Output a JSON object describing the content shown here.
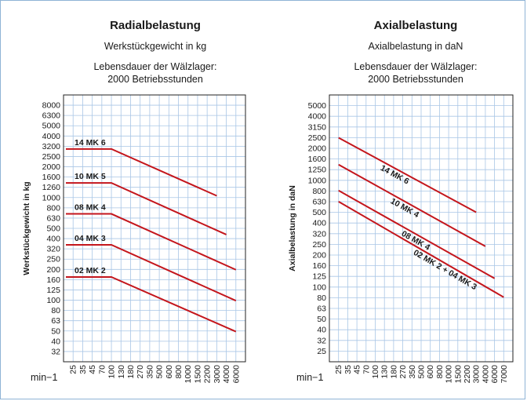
{
  "chart_data": [
    {
      "type": "line",
      "title": "Radialbelastung",
      "subtitle": "Werkstückgewicht in kg",
      "note_line1": "Lebensdauer der Wälzlager:",
      "note_line2": "2000 Betriebsstunden",
      "ylabel": "Werkstückgewicht in kg",
      "xunit": "min−1",
      "x_ticks": [
        "25",
        "35",
        "45",
        "70",
        "100",
        "130",
        "180",
        "270",
        "350",
        "500",
        "600",
        "800",
        "1000",
        "1500",
        "2200",
        "3000",
        "4000",
        "6000"
      ],
      "y_ticks": [
        "8000",
        "6300",
        "5000",
        "4000",
        "3200",
        "2500",
        "2000",
        "1600",
        "1260",
        "1000",
        "800",
        "630",
        "500",
        "400",
        "320",
        "250",
        "200",
        "160",
        "125",
        "100",
        "80",
        "63",
        "50",
        "40",
        "32"
      ],
      "grid": true,
      "series": [
        {
          "name": "14 MK 6",
          "points": [
            [
              "25",
              3000
            ],
            [
              "100",
              3000
            ],
            [
              "3000",
              1050
            ]
          ]
        },
        {
          "name": "10 MK 5",
          "points": [
            [
              "25",
              1400
            ],
            [
              "100",
              1400
            ],
            [
              "4000",
              440
            ]
          ]
        },
        {
          "name": "08 MK 4",
          "points": [
            [
              "25",
              700
            ],
            [
              "100",
              700
            ],
            [
              "6000",
              200
            ]
          ]
        },
        {
          "name": "04 MK 3",
          "points": [
            [
              "25",
              350
            ],
            [
              "100",
              350
            ],
            [
              "6000",
              100
            ]
          ]
        },
        {
          "name": "02 MK 2",
          "points": [
            [
              "25",
              170
            ],
            [
              "100",
              170
            ],
            [
              "6000",
              50
            ]
          ]
        }
      ]
    },
    {
      "type": "line",
      "title": "Axialbelastung",
      "subtitle": "Axialbelastung in daN",
      "note_line1": "Lebensdauer der Wälzlager:",
      "note_line2": "2000 Betriebsstunden",
      "ylabel": "Axialbelastung in daN",
      "xunit": "min−1",
      "x_ticks": [
        "25",
        "35",
        "45",
        "70",
        "100",
        "130",
        "180",
        "270",
        "350",
        "500",
        "600",
        "800",
        "1000",
        "1500",
        "2200",
        "3000",
        "4000",
        "6000",
        "7000"
      ],
      "y_ticks": [
        "5000",
        "4000",
        "3150",
        "2500",
        "2000",
        "1600",
        "1250",
        "1000",
        "800",
        "630",
        "500",
        "400",
        "320",
        "250",
        "200",
        "160",
        "125",
        "100",
        "80",
        "63",
        "50",
        "40",
        "32",
        "25"
      ],
      "grid": true,
      "series": [
        {
          "name": "14 MK 6",
          "points": [
            [
              "25",
              2500
            ],
            [
              "3000",
              500
            ]
          ]
        },
        {
          "name": "10 MK 4",
          "points": [
            [
              "25",
              1400
            ],
            [
              "4000",
              240
            ]
          ]
        },
        {
          "name": "08 MK 4",
          "points": [
            [
              "25",
              800
            ],
            [
              "6000",
              120
            ]
          ]
        },
        {
          "name": "02 MK 2 + 04 MK 3",
          "points": [
            [
              "25",
              630
            ],
            [
              "7000",
              80
            ]
          ]
        }
      ]
    }
  ]
}
